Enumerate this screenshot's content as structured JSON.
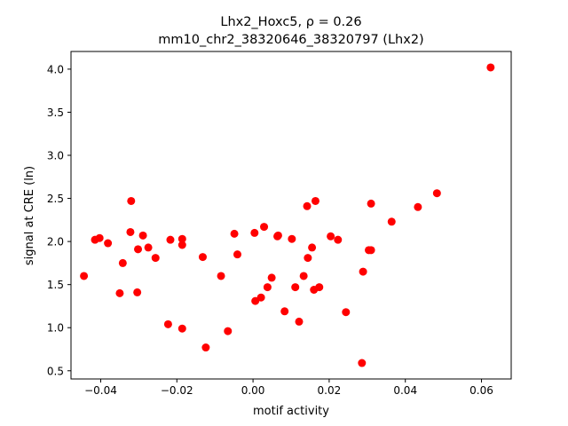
{
  "chart_data": {
    "type": "scatter",
    "title_line1": "Lhx2_Hoxc5, ρ = 0.26",
    "title_line2": "mm10_chr2_38320646_38320797 (Lhx2)",
    "xlabel": "motif activity",
    "ylabel": "signal at CRE (ln)",
    "xlim": [
      -0.0478,
      0.0678
    ],
    "ylim": [
      0.405,
      4.205
    ],
    "xticks": [
      -0.04,
      -0.02,
      0.0,
      0.02,
      0.04,
      0.06
    ],
    "xtick_labels": [
      "−0.04",
      "−0.02",
      "0.00",
      "0.02",
      "0.04",
      "0.06"
    ],
    "yticks": [
      0.5,
      1.0,
      1.5,
      2.0,
      2.5,
      3.0,
      3.5,
      4.0
    ],
    "ytick_labels": [
      "0.5",
      "1.0",
      "1.5",
      "2.0",
      "2.5",
      "3.0",
      "3.5",
      "4.0"
    ],
    "grid": false,
    "marker_color": "#ff0000",
    "points": [
      {
        "x": -0.0444,
        "y": 1.6
      },
      {
        "x": -0.0415,
        "y": 2.02
      },
      {
        "x": -0.0403,
        "y": 2.04
      },
      {
        "x": -0.0381,
        "y": 1.98
      },
      {
        "x": -0.035,
        "y": 1.4
      },
      {
        "x": -0.0342,
        "y": 1.75
      },
      {
        "x": -0.0322,
        "y": 2.11
      },
      {
        "x": -0.032,
        "y": 2.47
      },
      {
        "x": -0.0304,
        "y": 1.41
      },
      {
        "x": -0.0302,
        "y": 1.91
      },
      {
        "x": -0.0289,
        "y": 2.07
      },
      {
        "x": -0.0275,
        "y": 1.93
      },
      {
        "x": -0.0256,
        "y": 1.81
      },
      {
        "x": -0.0223,
        "y": 1.04
      },
      {
        "x": -0.0217,
        "y": 2.02
      },
      {
        "x": -0.0186,
        "y": 2.03
      },
      {
        "x": -0.0186,
        "y": 1.96
      },
      {
        "x": -0.0186,
        "y": 0.99
      },
      {
        "x": -0.0132,
        "y": 1.82
      },
      {
        "x": -0.0124,
        "y": 0.77
      },
      {
        "x": -0.0084,
        "y": 1.6
      },
      {
        "x": -0.0066,
        "y": 0.96
      },
      {
        "x": -0.0049,
        "y": 2.09
      },
      {
        "x": -0.0041,
        "y": 1.85
      },
      {
        "x": 0.0004,
        "y": 2.1
      },
      {
        "x": 0.0006,
        "y": 1.31
      },
      {
        "x": 0.0021,
        "y": 1.35
      },
      {
        "x": 0.0029,
        "y": 2.17
      },
      {
        "x": 0.0038,
        "y": 1.47
      },
      {
        "x": 0.0049,
        "y": 1.58
      },
      {
        "x": 0.0064,
        "y": 2.06
      },
      {
        "x": 0.0066,
        "y": 2.07
      },
      {
        "x": 0.0083,
        "y": 1.19
      },
      {
        "x": 0.0102,
        "y": 2.03
      },
      {
        "x": 0.0111,
        "y": 1.47
      },
      {
        "x": 0.0121,
        "y": 1.07
      },
      {
        "x": 0.0133,
        "y": 1.6
      },
      {
        "x": 0.0142,
        "y": 2.41
      },
      {
        "x": 0.0144,
        "y": 1.81
      },
      {
        "x": 0.0155,
        "y": 1.93
      },
      {
        "x": 0.016,
        "y": 1.44
      },
      {
        "x": 0.0164,
        "y": 2.47
      },
      {
        "x": 0.0174,
        "y": 1.47
      },
      {
        "x": 0.0204,
        "y": 2.06
      },
      {
        "x": 0.0223,
        "y": 2.02
      },
      {
        "x": 0.0244,
        "y": 1.18
      },
      {
        "x": 0.0286,
        "y": 0.59
      },
      {
        "x": 0.0289,
        "y": 1.65
      },
      {
        "x": 0.0304,
        "y": 1.9
      },
      {
        "x": 0.031,
        "y": 1.9
      },
      {
        "x": 0.031,
        "y": 2.44
      },
      {
        "x": 0.0364,
        "y": 2.23
      },
      {
        "x": 0.0433,
        "y": 2.4
      },
      {
        "x": 0.0483,
        "y": 2.56
      },
      {
        "x": 0.0624,
        "y": 4.02
      }
    ]
  }
}
